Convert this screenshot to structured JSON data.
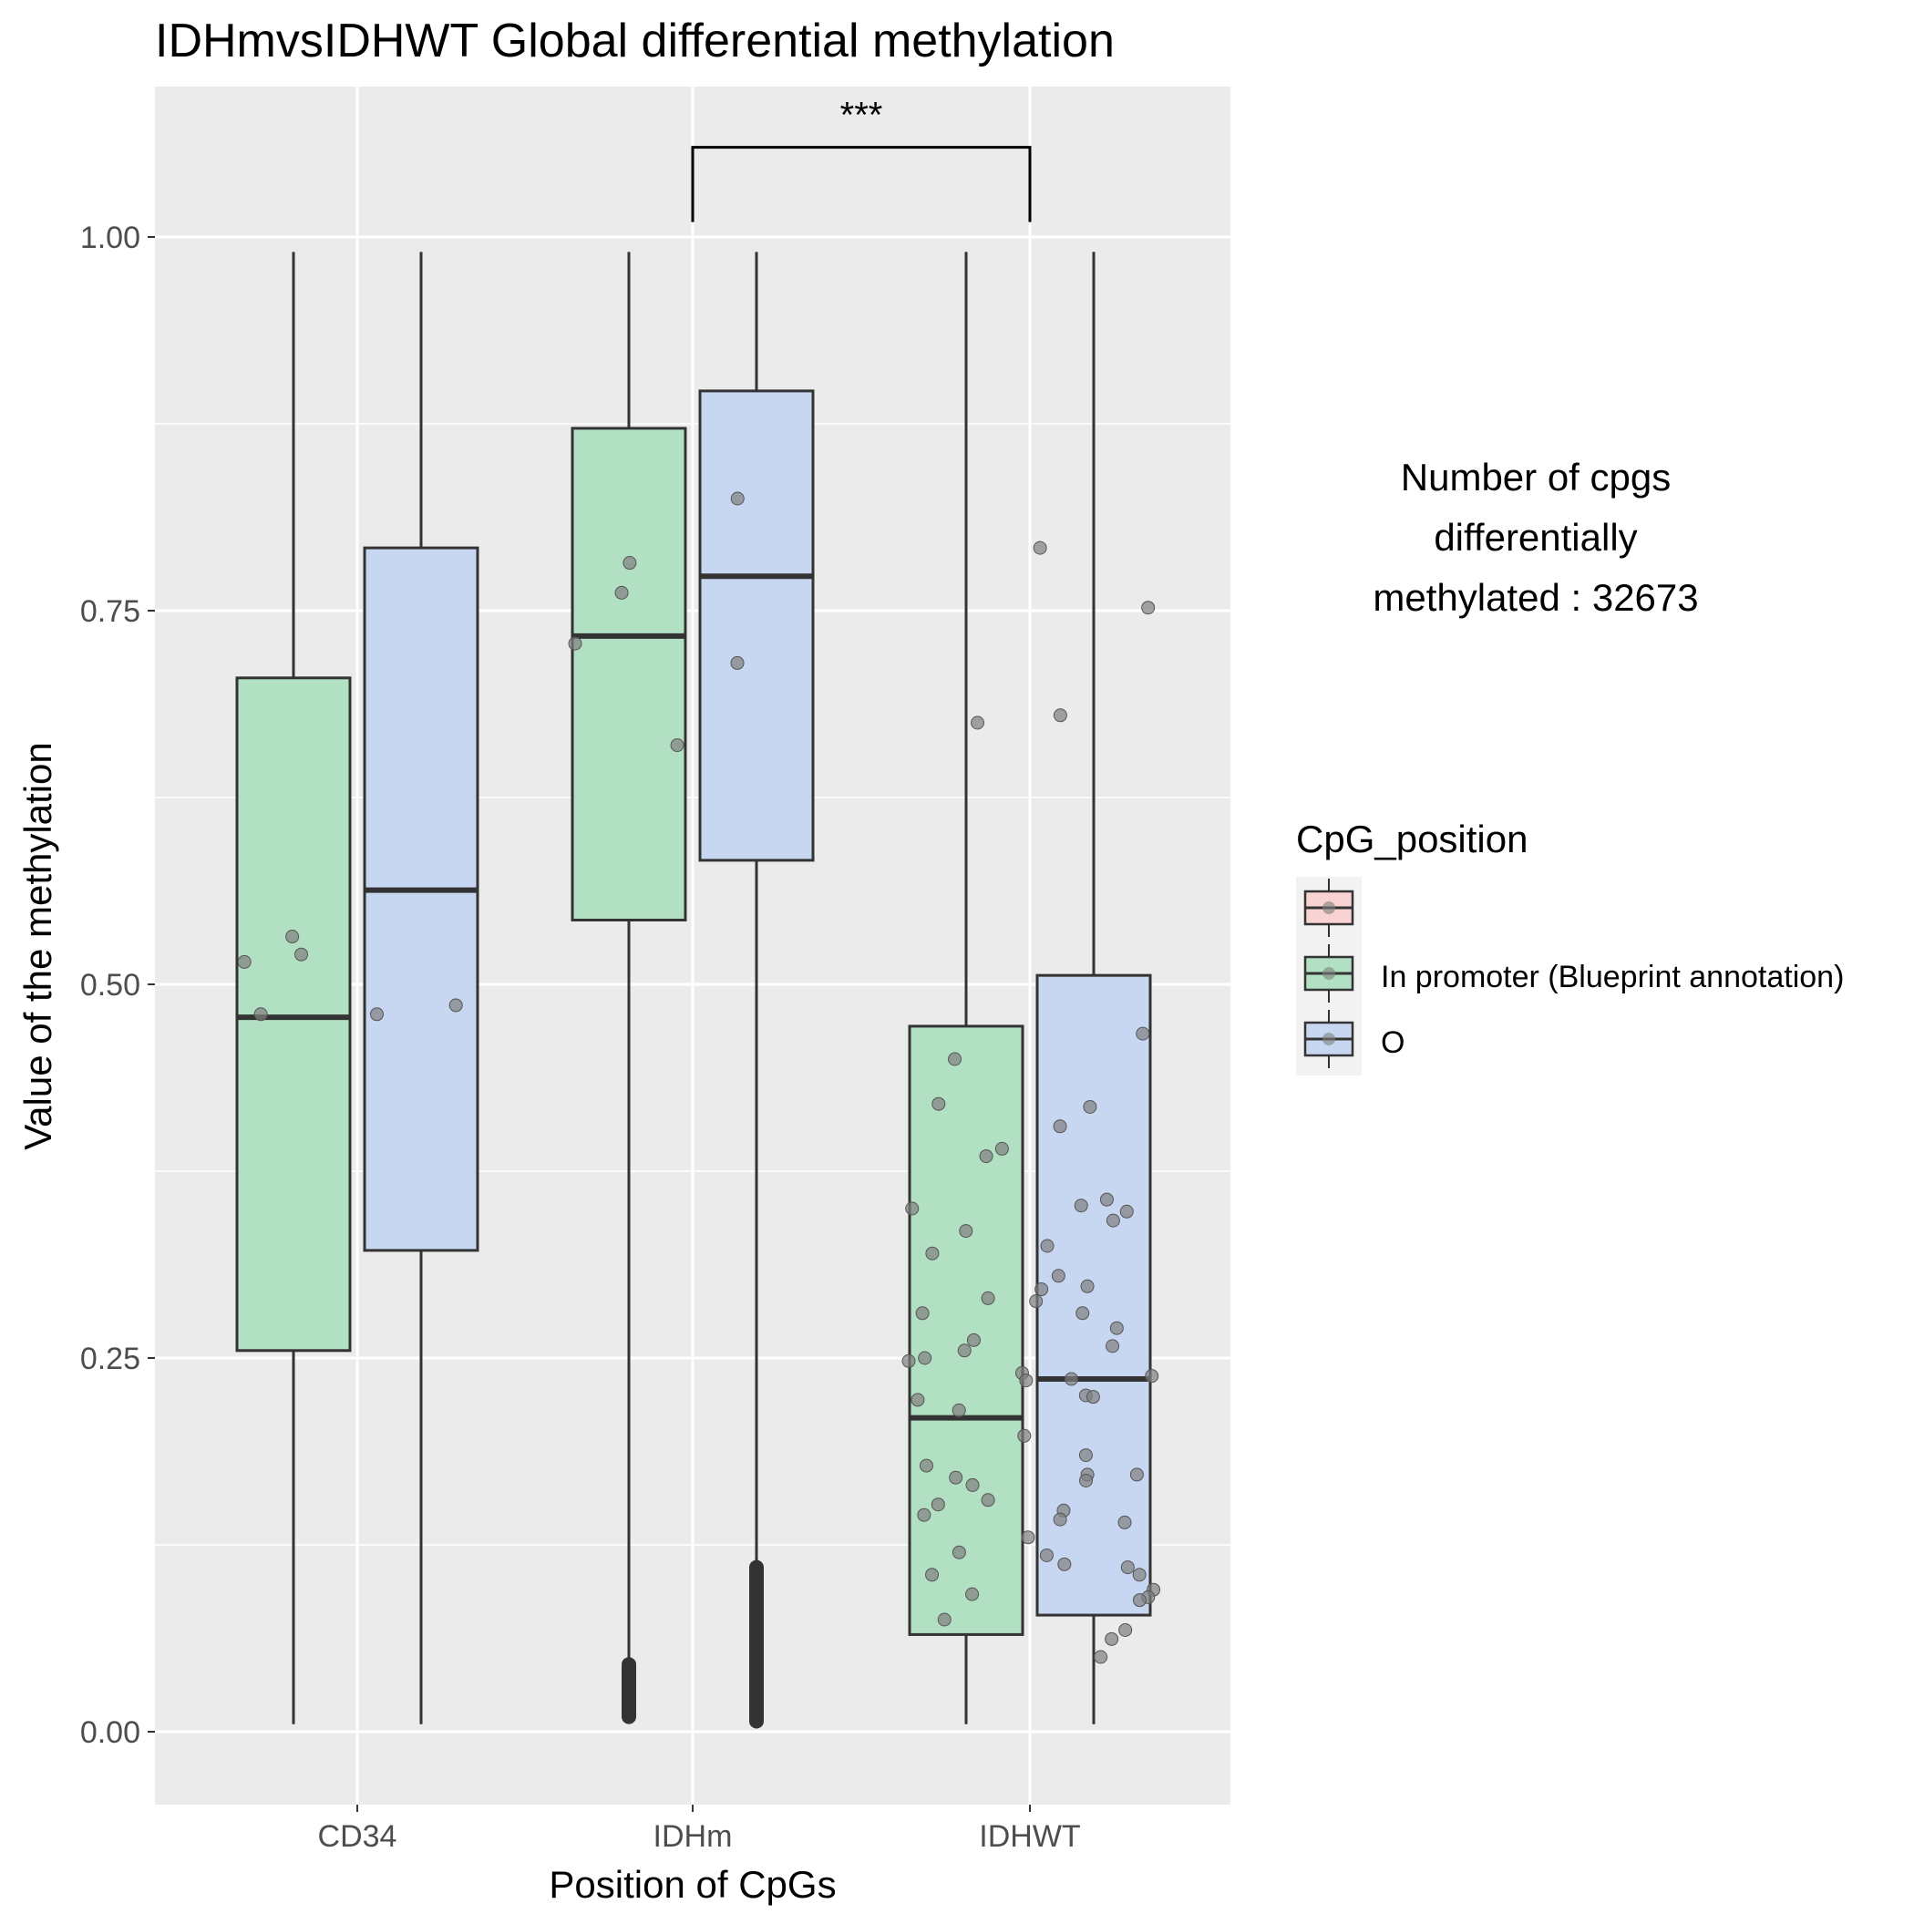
{
  "chart_data": {
    "type": "box",
    "title": "IDHmvsIDHWT Global differential methylation",
    "xlabel": "Position of CpGs",
    "ylabel": "Value of the methylation",
    "categories": [
      "CD34",
      "IDHm",
      "IDHWT"
    ],
    "ylim": [
      -0.05,
      1.1
    ],
    "yticks": [
      "0.00",
      "0.25",
      "0.50",
      "0.75",
      "1.00"
    ],
    "ytick_values": [
      0,
      0.25,
      0.5,
      0.75,
      1.0
    ],
    "grid": true,
    "legend": {
      "title": "CpG_position",
      "placement": "right",
      "entries": [
        {
          "label": "",
          "color": "#f8d3d1"
        },
        {
          "label": "In promoter (Blueprint annotation)",
          "color": "#b2e0c2"
        },
        {
          "label": "O",
          "color": "#c8d7f1"
        }
      ]
    },
    "annotation": {
      "text": "Number of cpgs\ndifferentially\nmethylated : 32673",
      "lines": [
        "Number of cpgs",
        "differentially",
        "methylated : 32673"
      ]
    },
    "significance": {
      "label": "***",
      "from": "IDHm",
      "to": "IDHWT",
      "y": 1.06
    },
    "series": [
      {
        "name": "In promoter (Blueprint annotation)",
        "color": "#b2e0c2",
        "boxes": [
          {
            "category": "CD34",
            "min": 0.005,
            "q1": 0.255,
            "median": 0.478,
            "q3": 0.705,
            "max": 0.99,
            "points": [
              0.532,
              0.52,
              0.515,
              0.48
            ]
          },
          {
            "category": "IDHm",
            "min": 0.045,
            "q1": 0.543,
            "median": 0.733,
            "q3": 0.872,
            "max": 0.99,
            "outliers_low": [
              0.01,
              0.045
            ],
            "points": [
              0.762,
              0.782,
              0.728,
              0.66
            ]
          },
          {
            "category": "IDHWT",
            "min": 0.005,
            "q1": 0.065,
            "median": 0.21,
            "q3": 0.472,
            "max": 0.99,
            "points": [
              0.675,
              0.45,
              0.42,
              0.39,
              0.385,
              0.35,
              0.335,
              0.32,
              0.29,
              0.28,
              0.262,
              0.255,
              0.25,
              0.248,
              0.24,
              0.235,
              0.222,
              0.215,
              0.198,
              0.178,
              0.17,
              0.165,
              0.155,
              0.152,
              0.145,
              0.13,
              0.12,
              0.105,
              0.092,
              0.075
            ]
          }
        ]
      },
      {
        "name": "O",
        "color": "#c8d7f1",
        "boxes": [
          {
            "category": "CD34",
            "min": 0.005,
            "q1": 0.322,
            "median": 0.563,
            "q3": 0.792,
            "max": 0.99,
            "points": [
              0.48,
              0.486
            ]
          },
          {
            "category": "IDHm",
            "min": 0.11,
            "q1": 0.583,
            "median": 0.773,
            "q3": 0.897,
            "max": 0.99,
            "outliers_low": [
              0.007,
              0.11
            ],
            "points": [
              0.825,
              0.715
            ]
          },
          {
            "category": "IDHWT",
            "min": 0.005,
            "q1": 0.078,
            "median": 0.236,
            "q3": 0.506,
            "max": 0.99,
            "points": [
              0.792,
              0.752,
              0.68,
              0.467,
              0.418,
              0.405,
              0.356,
              0.352,
              0.348,
              0.342,
              0.325,
              0.305,
              0.298,
              0.296,
              0.288,
              0.28,
              0.27,
              0.258,
              0.238,
              0.236,
              0.225,
              0.224,
              0.185,
              0.172,
              0.172,
              0.168,
              0.148,
              0.142,
              0.14,
              0.118,
              0.112,
              0.11,
              0.105,
              0.095,
              0.09,
              0.088,
              0.068,
              0.062,
              0.05
            ]
          }
        ]
      }
    ]
  }
}
